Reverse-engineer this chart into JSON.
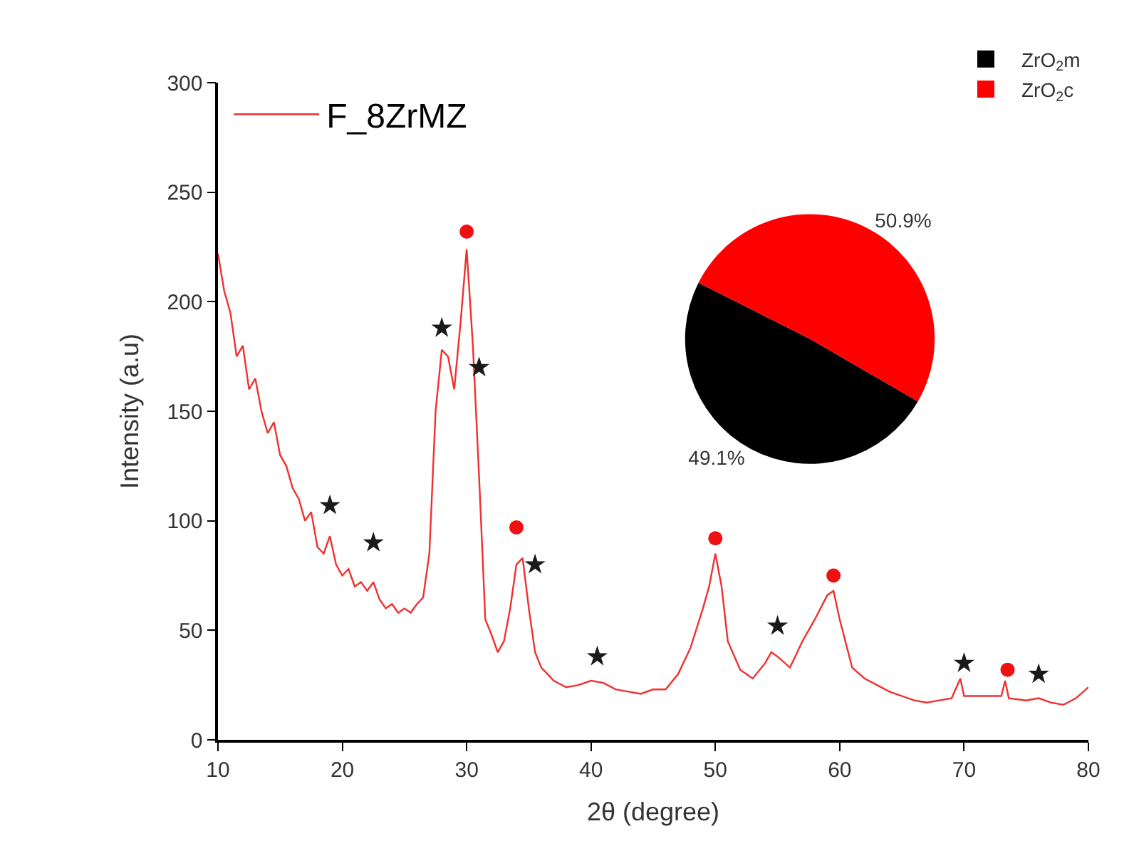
{
  "chart_data": [
    {
      "type": "line",
      "xlabel": "2θ (degree)",
      "ylabel": "Intensity (a.u)",
      "xlim": [
        10,
        80
      ],
      "ylim": [
        0,
        300
      ],
      "xticks": [
        10,
        20,
        30,
        40,
        50,
        60,
        70,
        80
      ],
      "yticks": [
        0,
        50,
        100,
        150,
        200,
        250,
        300
      ],
      "legend": "top left",
      "series": [
        {
          "name": "F_8ZrMZ",
          "type": "line",
          "color": "#f03030",
          "marker": "none",
          "line_style": "solid",
          "x": [
            10,
            10.5,
            11,
            11.5,
            12,
            12.5,
            13,
            13.5,
            14,
            14.5,
            15,
            15.5,
            16,
            16.5,
            17,
            17.5,
            18,
            18.5,
            19,
            19.5,
            20,
            20.5,
            21,
            21.5,
            22,
            22.5,
            23,
            23.5,
            24,
            24.5,
            25,
            25.5,
            26,
            26.5,
            27,
            27.5,
            28,
            28.5,
            29,
            29.5,
            30,
            30.5,
            31,
            31.5,
            32,
            32.5,
            33,
            33.5,
            34,
            34.5,
            35,
            35.5,
            36,
            37,
            38,
            39,
            40,
            41,
            42,
            43,
            44,
            45,
            46,
            47,
            48,
            49,
            49.5,
            50,
            50.5,
            51,
            52,
            53,
            54,
            54.5,
            55,
            56,
            57,
            58,
            59,
            59.5,
            60,
            61,
            62,
            63,
            64,
            65,
            66,
            67,
            68,
            69,
            69.7,
            70,
            71,
            72,
            73,
            73.3,
            73.6,
            75,
            76,
            77,
            78,
            79,
            80
          ],
          "values": [
            222,
            205,
            195,
            175,
            180,
            160,
            165,
            150,
            140,
            145,
            130,
            125,
            115,
            110,
            100,
            104,
            88,
            85,
            93,
            80,
            75,
            78,
            70,
            72,
            68,
            72,
            64,
            60,
            62,
            58,
            60,
            58,
            62,
            65,
            85,
            150,
            178,
            175,
            160,
            190,
            224,
            180,
            120,
            55,
            48,
            40,
            45,
            60,
            80,
            83,
            60,
            40,
            33,
            27,
            24,
            25,
            27,
            26,
            23,
            22,
            21,
            23,
            23,
            30,
            42,
            60,
            70,
            85,
            70,
            45,
            32,
            28,
            35,
            40,
            38,
            33,
            45,
            55,
            66,
            68,
            55,
            33,
            28,
            25,
            22,
            20,
            18,
            17,
            18,
            19,
            28,
            20,
            20,
            20,
            20,
            27,
            19,
            18,
            19,
            17,
            16,
            19,
            24
          ]
        },
        {
          "type": "scatter",
          "color": "#1a1a1a",
          "marker": "star",
          "x": [
            19,
            22.5,
            28,
            31,
            35.5,
            40.5,
            55,
            70,
            76
          ],
          "values": [
            107,
            90,
            188,
            170,
            80,
            38,
            52,
            35,
            30
          ]
        },
        {
          "type": "scatter",
          "color": "#ee1111",
          "marker": "circle",
          "x": [
            30,
            34,
            50,
            59.5,
            73.5
          ],
          "values": [
            232,
            97,
            92,
            75,
            32
          ]
        }
      ]
    },
    {
      "type": "pie",
      "legend": "top right",
      "categories": [
        "ZrO$_{2}$m",
        "ZrO$_{2}$c"
      ],
      "values": [
        49.1,
        50.9
      ],
      "colors": [
        "#000000",
        "#ff0000"
      ],
      "value_labels": [
        "49.1%",
        "50.9%"
      ]
    }
  ]
}
